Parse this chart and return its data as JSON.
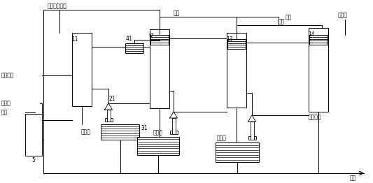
{
  "bg": "#ffffff",
  "labels": {
    "top_left": "甲醇、生物酔",
    "top_mid": "甲醇",
    "methanol2": "甲醇",
    "methanol3": "甲醇",
    "acid": "降酸剂",
    "oil": "油脂原料",
    "bio_enz_l": "生物酔",
    "methanol_l": "甲醇",
    "n5": "5",
    "n11": "11",
    "n21": "21",
    "n41": "41",
    "n12": "t2",
    "n13": "13",
    "n14": "14",
    "n31": "31",
    "be1": "生物酔",
    "be2": "生物酔",
    "be3": "生物酔",
    "biodiesel": "生物柴油",
    "glycerol": "甘油"
  }
}
